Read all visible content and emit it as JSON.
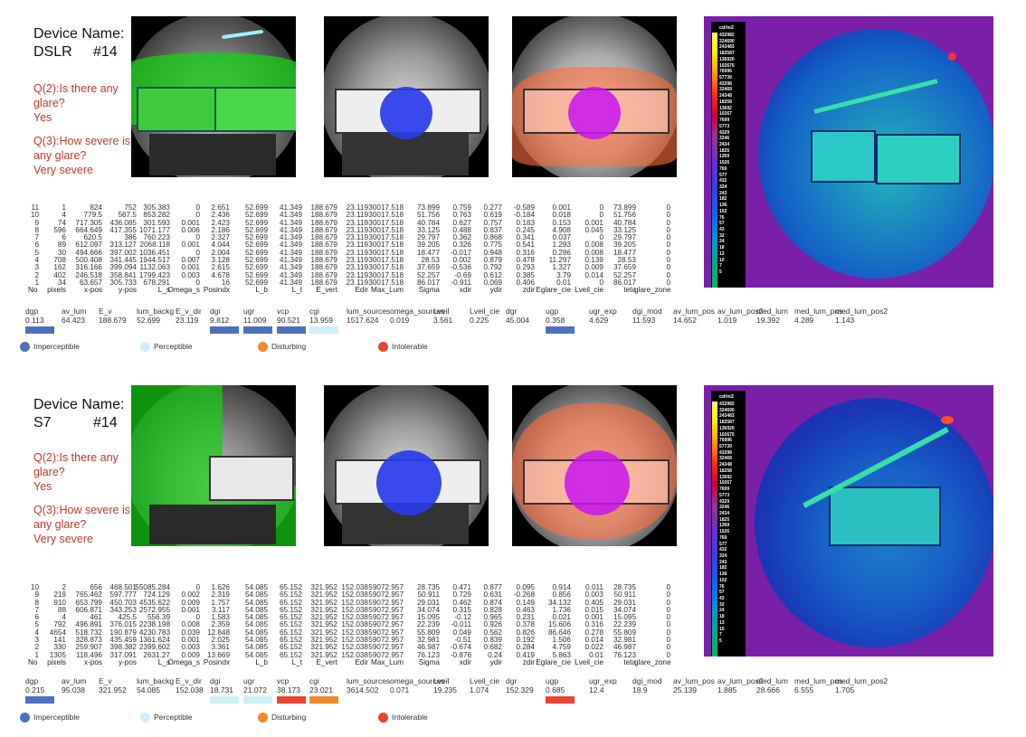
{
  "columns": [
    "No",
    "pixels",
    "x-pos",
    "y-pos",
    "L_s",
    "Omega_s",
    "Posindx",
    "L_b",
    "L_t",
    "E_vert",
    "Edir",
    "Max_Lum",
    "Sigma",
    "xdir",
    "ydir",
    "zdir",
    "Eglare_cie",
    "Lveil_cie",
    "teta",
    "glare_zone"
  ],
  "summary_labels": [
    "dgp",
    "av_lum",
    "E_v",
    "lum_backg",
    "E_v_dir",
    "dgi",
    "ugr",
    "vcp",
    "cgi",
    "lum_sources",
    "omega_sources",
    "Lveil",
    "Lveil_cie",
    "dgr",
    "ugp",
    "ugr_exp",
    "dgi_mod",
    "av_lum_pos",
    "av_lum_pos2",
    "med_lum",
    "med_lum_pos",
    "med_lum_pos2"
  ],
  "legend": {
    "imperceptible": "Imperceptible",
    "perceptible": "Perceptible",
    "disturbing": "Disturbing",
    "intolerable": "Intolerable"
  },
  "colors": {
    "imperceptible": "#4f6fbf",
    "perceptible": "#cfeff8",
    "disturbing": "#f0892a",
    "intolerable": "#e8442f"
  },
  "scale": {
    "unit": "cd/m2",
    "ticks": [
      "432982",
      "324690",
      "243483",
      "182587",
      "136920",
      "102675",
      "76996",
      "57739",
      "43298",
      "32469",
      "24348",
      "18258",
      "13692",
      "10267",
      "7699",
      "5773",
      "4329",
      "3246",
      "2434",
      "1825",
      "1369",
      "1026",
      "769",
      "577",
      "432",
      "324",
      "243",
      "182",
      "136",
      "102",
      "76",
      "57",
      "43",
      "32",
      "24",
      "18",
      "13",
      "10",
      "7",
      "5"
    ]
  },
  "panels": [
    {
      "device_label": "Device Name:",
      "device": "DSLR",
      "id": "#14",
      "q2": "Q(2):Is there any glare?",
      "q2_answer": "Yes",
      "q3": "Q(3):How severe is any glare?",
      "q3_answer": "Very severe",
      "rows": [
        [
          "11",
          "1",
          "824",
          "752",
          "305.383",
          "0",
          "2.651",
          "52.699",
          "41.349",
          "188.679",
          "23.119",
          "30017.518",
          "73.899",
          "0.759",
          "0.277",
          "-0.589",
          "0.001",
          "0",
          "73.899",
          "0"
        ],
        [
          "10",
          "4",
          "779.5",
          "567.5",
          "853.282",
          "0",
          "2.436",
          "52.699",
          "41.349",
          "188.679",
          "23.119",
          "30017.518",
          "51.756",
          "0.763",
          "0.619",
          "-0.184",
          "0.018",
          "0",
          "51.756",
          "0"
        ],
        [
          "9",
          "74",
          "717.305",
          "436.085",
          "301.593",
          "0.001",
          "2.423",
          "52.699",
          "41.349",
          "188.679",
          "23.119",
          "30017.518",
          "40.784",
          "0.627",
          "0.757",
          "0.183",
          "0.153",
          "0.001",
          "40.784",
          "0"
        ],
        [
          "8",
          "596",
          "664.649",
          "417.355",
          "1071.177",
          "0.006",
          "2.186",
          "52.699",
          "41.349",
          "188.679",
          "23.119",
          "30017.518",
          "33.125",
          "0.488",
          "0.837",
          "0.245",
          "4.908",
          "0.045",
          "33.125",
          "0"
        ],
        [
          "7",
          "6",
          "620.5",
          "386",
          "760.223",
          "0",
          "2.327",
          "52.699",
          "41.349",
          "188.679",
          "23.119",
          "30017.518",
          "29.797",
          "0.362",
          "0.868",
          "0.341",
          "0.037",
          "0",
          "29.797",
          "0"
        ],
        [
          "6",
          "89",
          "612.097",
          "313.127",
          "2068.118",
          "0.001",
          "4.044",
          "52.699",
          "41.349",
          "188.679",
          "23.119",
          "30017.518",
          "39.205",
          "0.326",
          "0.775",
          "0.541",
          "1.293",
          "0.008",
          "39.205",
          "0"
        ],
        [
          "5",
          "30",
          "494.666",
          "397.002",
          "1036.451",
          "0",
          "2.004",
          "52.699",
          "41.349",
          "188.679",
          "23.119",
          "30017.518",
          "18.477",
          "-0.017",
          "0.948",
          "0.316",
          "0.286",
          "0.008",
          "18.477",
          "0"
        ],
        [
          "4",
          "708",
          "500.408",
          "341.445",
          "1944.517",
          "0.007",
          "3.128",
          "52.699",
          "41.349",
          "188.679",
          "23.119",
          "30017.518",
          "28.53",
          "0.002",
          "0.879",
          "0.478",
          "11.297",
          "0.139",
          "28.53",
          "0"
        ],
        [
          "3",
          "162",
          "316.166",
          "399.094",
          "1132.063",
          "0.001",
          "2.615",
          "52.699",
          "41.349",
          "188.679",
          "23.119",
          "30017.518",
          "37.659",
          "-0.536",
          "0.792",
          "0.293",
          "1.327",
          "0.009",
          "37.659",
          "0"
        ],
        [
          "2",
          "402",
          "246.518",
          "358.841",
          "1799.423",
          "0.003",
          "4.678",
          "52.699",
          "41.349",
          "188.679",
          "23.119",
          "30017.518",
          "52.257",
          "-0.69",
          "0.612",
          "0.385",
          "3.79",
          "0.014",
          "52.257",
          "0"
        ],
        [
          "1",
          "34",
          "63.657",
          "305.733",
          "678.291",
          "0",
          "16",
          "52.699",
          "41.349",
          "188.679",
          "23.119",
          "30017.518",
          "86.017",
          "-0.911",
          "0.069",
          "0.406",
          "0.01",
          "0",
          "86.017",
          "0"
        ]
      ],
      "summary_values": [
        "0.113",
        "64.423",
        "188.679",
        "52.699",
        "23.119",
        "9.812",
        "11.009",
        "90.521",
        "13.959",
        "1517.624",
        "0.019",
        "3.561",
        "0.225",
        "45.004",
        "0.358",
        "4.629",
        "11.593",
        "14.652",
        "1.019",
        "19.392",
        "4.289",
        "1.143"
      ],
      "summary_levels": {
        "dgp": "imperceptible",
        "dgi": "imperceptible",
        "ugr": "imperceptible",
        "vcp": "imperceptible",
        "cgi": "perceptible",
        "ugp": "imperceptible"
      }
    },
    {
      "device_label": "Device Name:",
      "device": "S7",
      "id": "#14",
      "q2": "Q(2):Is there any glare?",
      "q2_answer": "Yes",
      "q3": "Q(3):How severe is any glare?",
      "q3_answer": "Very severe",
      "rows": [
        [
          "10",
          "2",
          "656",
          "468.501",
          "55085.284",
          "0",
          "1.626",
          "54.085",
          "65.152",
          "321.952",
          "152.038",
          "59072.957",
          "28.735",
          "0.471",
          "0.877",
          "0.095",
          "0.914",
          "0.011",
          "28.735",
          "0"
        ],
        [
          "9",
          "219",
          "765.462",
          "597.777",
          "724.129",
          "0.002",
          "2.319",
          "54.085",
          "65.152",
          "321.952",
          "152.038",
          "59072.957",
          "50.911",
          "0.729",
          "0.631",
          "-0.268",
          "0.856",
          "0.003",
          "50.911",
          "0"
        ],
        [
          "8",
          "910",
          "653.799",
          "450.703",
          "4535.622",
          "0.009",
          "1.757",
          "54.085",
          "65.152",
          "321.952",
          "152.038",
          "59072.957",
          "29.031",
          "0.462",
          "0.874",
          "0.149",
          "34.132",
          "0.405",
          "29.031",
          "0"
        ],
        [
          "7",
          "88",
          "606.871",
          "343.253",
          "2572.955",
          "0.001",
          "3.117",
          "54.085",
          "65.152",
          "321.952",
          "152.038",
          "59072.957",
          "34.074",
          "0.315",
          "0.828",
          "0.463",
          "1.736",
          "0.015",
          "34.074",
          "0"
        ],
        [
          "6",
          "4",
          "461",
          "425.5",
          "556.39",
          "0",
          "1.583",
          "54.085",
          "65.152",
          "321.952",
          "152.038",
          "59072.957",
          "15.095",
          "-0.12",
          "0.965",
          "0.231",
          "0.021",
          "0.001",
          "15.095",
          "0"
        ],
        [
          "5",
          "792",
          "496.891",
          "376.015",
          "2238.198",
          "0.008",
          "2.359",
          "54.085",
          "65.152",
          "321.952",
          "152.038",
          "59072.957",
          "22.239",
          "-0.011",
          "0.926",
          "0.378",
          "15.606",
          "0.316",
          "22.239",
          "0"
        ],
        [
          "4",
          "4654",
          "518.732",
          "190.879",
          "4230.783",
          "0.039",
          "12.848",
          "54.085",
          "65.152",
          "321.952",
          "152.038",
          "59072.957",
          "55.809",
          "0.049",
          "0.562",
          "0.826",
          "86.646",
          "0.278",
          "55.809",
          "0"
        ],
        [
          "3",
          "141",
          "328.873",
          "435.459",
          "1361.624",
          "0.001",
          "2.025",
          "54.085",
          "65.152",
          "321.952",
          "152.038",
          "59072.957",
          "32.981",
          "-0.51",
          "0.839",
          "0.192",
          "1.506",
          "0.014",
          "32.981",
          "0"
        ],
        [
          "2",
          "330",
          "259.907",
          "398.382",
          "2399.602",
          "0.003",
          "3.361",
          "54.085",
          "65.152",
          "321.952",
          "152.038",
          "59072.957",
          "46.987",
          "-0.674",
          "0.682",
          "0.284",
          "4.759",
          "0.022",
          "46.987",
          "0"
        ],
        [
          "1",
          "1305",
          "118.496",
          "317.091",
          "2631.27",
          "0.009",
          "13.669",
          "54.085",
          "65.152",
          "321.952",
          "152.038",
          "59072.957",
          "76.123",
          "-0.876",
          "0.24",
          "0.419",
          "5.863",
          "0.01",
          "76.123",
          "0"
        ]
      ],
      "summary_values": [
        "0.215",
        "95.038",
        "321.952",
        "54.085",
        "152.038",
        "18.731",
        "21.072",
        "38.173",
        "23.021",
        "3614.502",
        "0.071",
        "19.235",
        "1.074",
        "152.329",
        "0.685",
        "12.4",
        "18.9",
        "25.139",
        "1.885",
        "28.666",
        "6.555",
        "1.705"
      ],
      "summary_levels": {
        "dgp": "imperceptible",
        "dgi": "perceptible",
        "ugr": "perceptible",
        "vcp": "intolerable",
        "cgi": "disturbing",
        "ugp": "intolerable"
      }
    }
  ]
}
